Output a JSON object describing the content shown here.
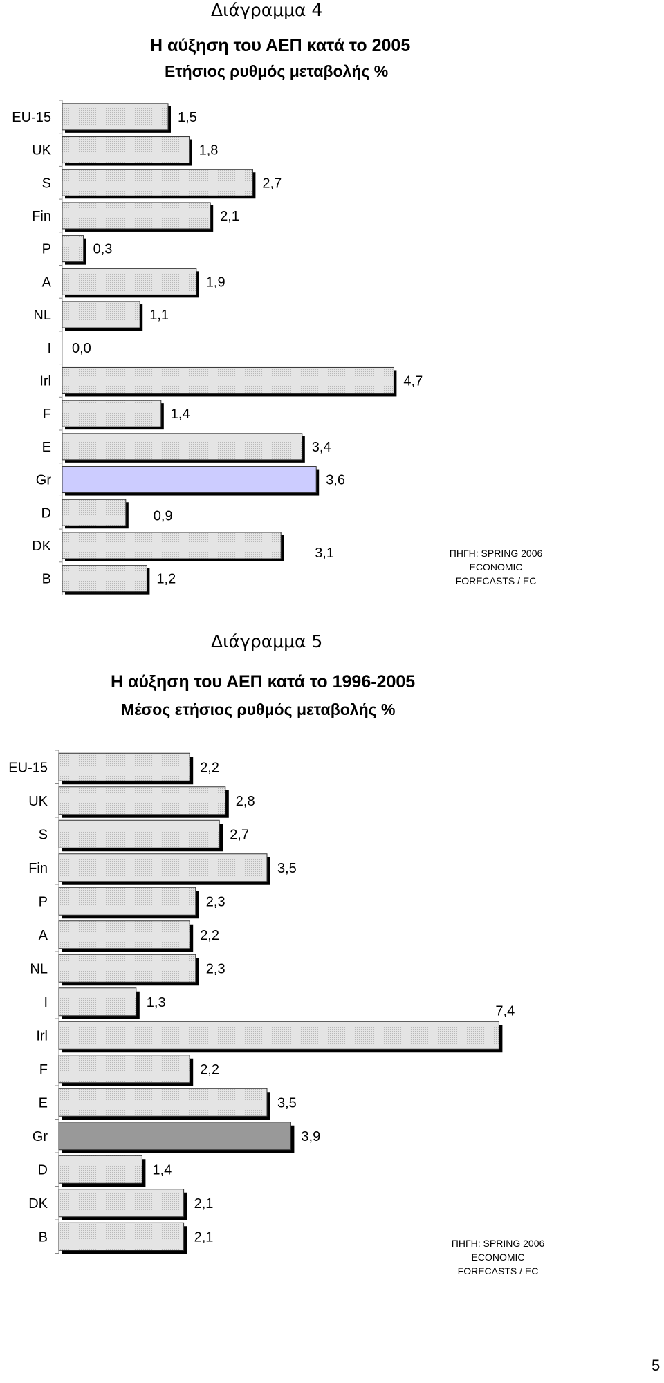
{
  "chart_data": [
    {
      "type": "bar",
      "orientation": "horizontal",
      "label": "Διάγραμμα 4",
      "title": "Η αύξηση του ΑΕΠ κατά το 2005",
      "subtitle": "Ετήσιος ρυθμός μεταβολής %",
      "source": [
        "ΠΗΓΗ: SPRING 2006",
        "ECONOMIC",
        "FORECASTS / EC"
      ],
      "categories": [
        "EU-15",
        "UK",
        "S",
        "Fin",
        "P",
        "A",
        "NL",
        "I",
        "Irl",
        "F",
        "E",
        "Gr",
        "D",
        "DK",
        "B"
      ],
      "values": [
        1.5,
        1.8,
        2.7,
        2.1,
        0.3,
        1.9,
        1.1,
        0.0,
        4.7,
        1.4,
        3.4,
        3.6,
        0.9,
        3.1,
        1.2
      ],
      "value_labels": [
        "1,5",
        "1,8",
        "2,7",
        "2,1",
        "0,3",
        "1,9",
        "1,1",
        "0,0",
        "4,7",
        "1,4",
        "3,4",
        "3,6",
        "0,9",
        "3,1",
        "1,2"
      ],
      "highlight": "Gr",
      "colors": {
        "bar": "#e4e4e4",
        "highlight": "#ccccff",
        "shadow": "#000000"
      },
      "grid": false,
      "legend": "none"
    },
    {
      "type": "bar",
      "orientation": "horizontal",
      "label": "Διάγραμμα 5",
      "title": "Η αύξηση του ΑΕΠ κατά το 1996-2005",
      "subtitle": "Μέσος ετήσιος ρυθμός μεταβολής %",
      "source": [
        "ΠΗΓΗ: SPRING 2006",
        "ECONOMIC",
        "FORECASTS / EC"
      ],
      "categories": [
        "EU-15",
        "UK",
        "S",
        "Fin",
        "P",
        "A",
        "NL",
        "I",
        "Irl",
        "F",
        "E",
        "Gr",
        "D",
        "DK",
        "B"
      ],
      "values": [
        2.2,
        2.8,
        2.7,
        3.5,
        2.3,
        2.2,
        2.3,
        1.3,
        7.4,
        2.2,
        3.5,
        3.9,
        1.4,
        2.1,
        2.1
      ],
      "value_labels": [
        "2,2",
        "2,8",
        "2,7",
        "3,5",
        "2,3",
        "2,2",
        "2,3",
        "1,3",
        "7,4",
        "2,2",
        "3,5",
        "3,9",
        "1,4",
        "2,1",
        "2,1"
      ],
      "highlight": "Gr",
      "colors": {
        "bar": "#e4e4e4",
        "highlight": "#999999",
        "shadow": "#000000"
      },
      "grid": false,
      "legend": "none"
    }
  ],
  "page_number": "5"
}
